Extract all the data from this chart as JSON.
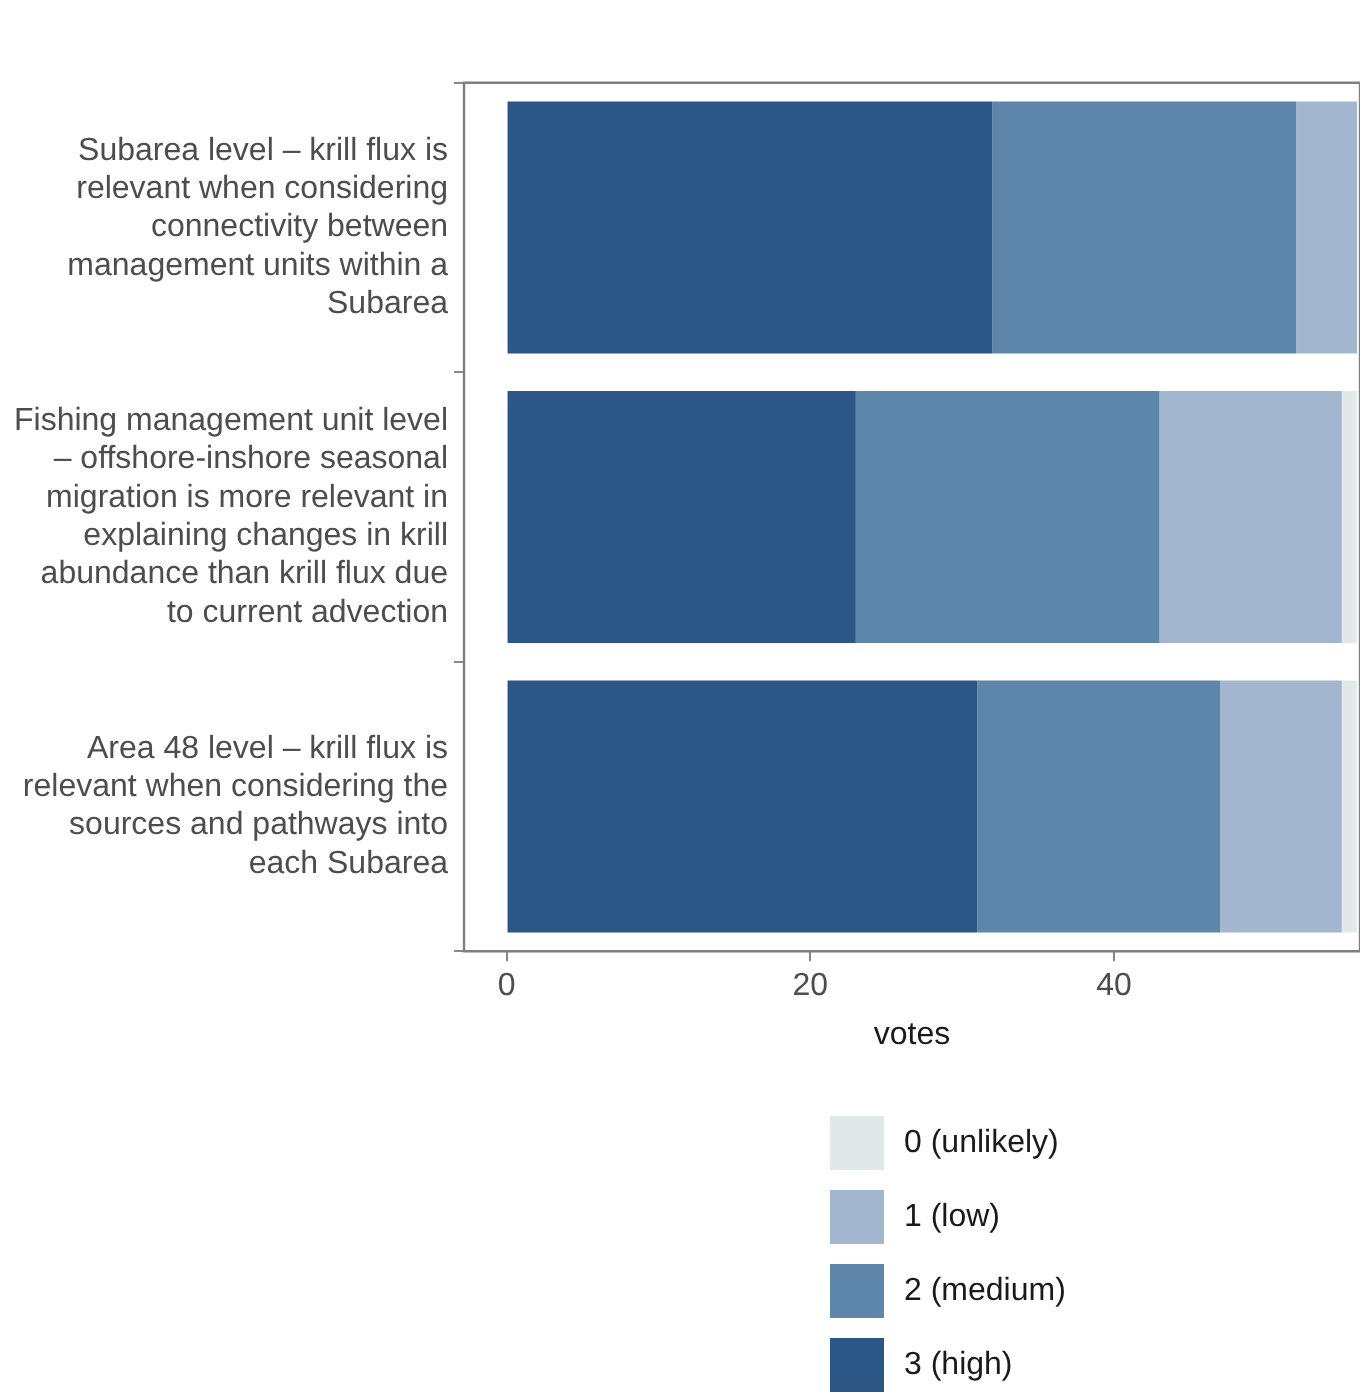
{
  "chart_data": {
    "type": "bar",
    "orientation": "horizontal",
    "stacked": true,
    "xlabel": "votes",
    "categories": [
      "Subarea level – krill flux is\nrelevant when considering\nconnectivity between\nmanagement units within a\nSubarea",
      "Fishing management unit level\n– offshore-inshore seasonal\nmigration is more relevant in\nexplaining changes in krill\nabundance than krill flux due\nto current advection",
      "Area 48 level – krill flux is\nrelevant when considering the\nsources and pathways into\neach Subarea"
    ],
    "series": [
      {
        "name": "3 (high)",
        "color": "#2b5685",
        "values": [
          32,
          23,
          31
        ]
      },
      {
        "name": "2 (medium)",
        "color": "#5e86ab",
        "values": [
          20,
          20,
          16
        ]
      },
      {
        "name": "1 (low)",
        "color": "#a2b7cf",
        "values": [
          4,
          12,
          8
        ]
      },
      {
        "name": "0 (unlikely)",
        "color": "#e2e8ea",
        "values": [
          0,
          1,
          1
        ]
      }
    ],
    "xlim": [
      -2.8,
      56.2
    ],
    "xticks": [
      0,
      20,
      40
    ],
    "grid": false,
    "legend": "bottom"
  }
}
